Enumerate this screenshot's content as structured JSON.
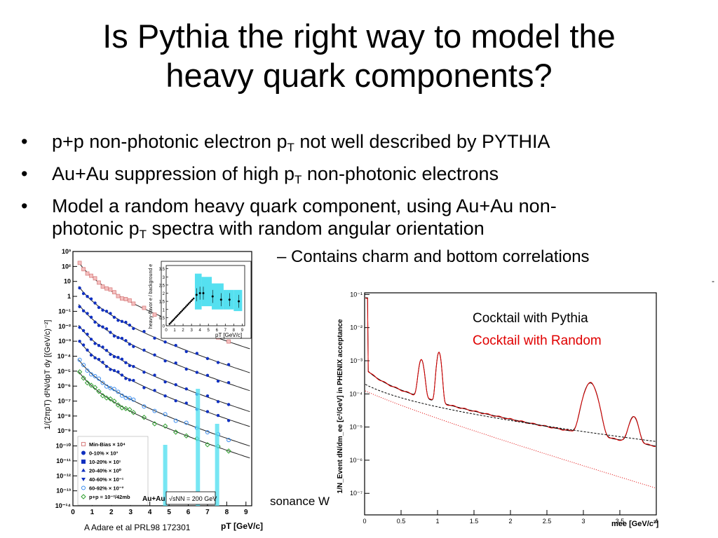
{
  "slide": {
    "title_line1": "Is Pythia the right way to model the",
    "title_line2": "heavy quark components?",
    "bullets": [
      {
        "pre": "p+p non-photonic electron p",
        "sub": "T",
        "post": " not well described by PYTHIA"
      },
      {
        "pre": "Au+Au suppression of high p",
        "sub": "T",
        "post": " non-photonic electrons"
      },
      {
        "line1": "Model a random heavy quark component, using Au+Au non-",
        "pre2": "photonic p",
        "sub": "T",
        "post2": " spectra with random angular orientation"
      }
    ],
    "sub_bullet": "– Contains charm and bottom correlations",
    "caption": "A Adare et al PRL98 172301",
    "partial_text": "sonance W",
    "edge_mark": "-"
  },
  "left_plot": {
    "y_label": "1/(2πpT) d²N/dpT dy  [(GeV/c)⁻²]",
    "y_ticks": [
      "10³",
      "10²",
      "10",
      "1",
      "10⁻¹",
      "10⁻²",
      "10⁻³",
      "10⁻⁴",
      "10⁻⁵",
      "10⁻⁶",
      "10⁻⁷",
      "10⁻⁸",
      "10⁻⁹",
      "10⁻¹⁰",
      "10⁻¹¹",
      "10⁻¹²",
      "10⁻¹³",
      "10⁻¹⁴"
    ],
    "x_ticks": [
      "0",
      "1",
      "2",
      "3",
      "4",
      "5",
      "6",
      "7",
      "8",
      "9"
    ],
    "x_label": "pT [GeV/c]",
    "legend": [
      {
        "label": "Min-Bias × 10⁴",
        "color": "#d98080",
        "shape": "square-open"
      },
      {
        "label": "0-10% × 10³",
        "color": "#1030c0",
        "shape": "circle"
      },
      {
        "label": "10-20% × 10¹",
        "color": "#1030c0",
        "shape": "square"
      },
      {
        "label": "20-40% × 10⁰",
        "color": "#1030c0",
        "shape": "triangle"
      },
      {
        "label": "40-60% × 10⁻¹",
        "color": "#1030c0",
        "shape": "triangle-down"
      },
      {
        "label": "60-92% × 10⁻²",
        "color": "#3388ee",
        "shape": "circle-open"
      },
      {
        "label": "p+p = 10⁻²/42mb",
        "color": "#30a030",
        "shape": "diamond"
      }
    ],
    "system_label": "Au+Au",
    "energy_label": "√sNN = 200 GeV",
    "inset": {
      "y_label": "heavy-flavor e / background e",
      "y_ticks": [
        "0",
        "0.5",
        "1",
        "1.5",
        "2",
        "2.5",
        "3",
        "3.5"
      ],
      "x_ticks": [
        "0",
        "1",
        "2",
        "3",
        "4",
        "5",
        "6",
        "7",
        "8",
        "9"
      ],
      "x_label": "pT [GeV/c]"
    }
  },
  "right_plot": {
    "y_label": "1/N_Event dN/dm_ee [c²/GeV] in PHENIX acceptance",
    "y_ticks": [
      "10⁻¹",
      "10⁻²",
      "10⁻³",
      "10⁻⁴",
      "10⁻⁵",
      "10⁻⁶",
      "10⁻⁷"
    ],
    "x_ticks": [
      "0",
      "0.5",
      "1",
      "1.5",
      "2",
      "2.5",
      "3",
      "3.5",
      "4"
    ],
    "x_label": "mee [GeV/c²]",
    "legend": [
      {
        "label": "Cocktail with Pythia",
        "color": "#000000"
      },
      {
        "label": "Cocktail with Random",
        "color": "#e00000"
      }
    ]
  }
}
